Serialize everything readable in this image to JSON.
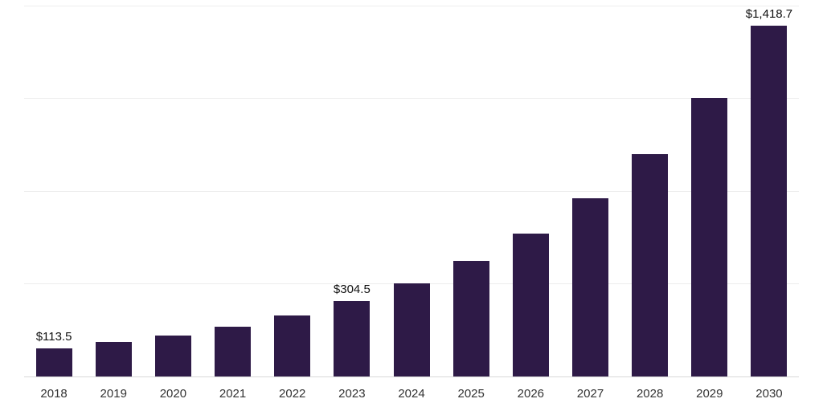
{
  "chart_data": {
    "type": "bar",
    "title": "",
    "xlabel": "",
    "ylabel": "",
    "categories": [
      "2018",
      "2019",
      "2020",
      "2021",
      "2022",
      "2023",
      "2024",
      "2025",
      "2026",
      "2027",
      "2028",
      "2029",
      "2030"
    ],
    "values": [
      113.5,
      139.0,
      166.5,
      201.5,
      247.0,
      304.5,
      377.5,
      468.5,
      578.0,
      722.0,
      898.0,
      1126.0,
      1418.7
    ],
    "data_labels": [
      "$113.5",
      "",
      "",
      "",
      "",
      "$304.5",
      "",
      "",
      "",
      "",
      "",
      "",
      "$1,418.7"
    ],
    "ylim": [
      0,
      1500
    ],
    "grid": true,
    "grid_divisions": 4,
    "legend": "none",
    "bar_color": "#2e1a47",
    "axis_line_color": "#d9d9d9",
    "grid_color": "#ededed",
    "label_color": "#111111",
    "tick_color": "#333333"
  }
}
